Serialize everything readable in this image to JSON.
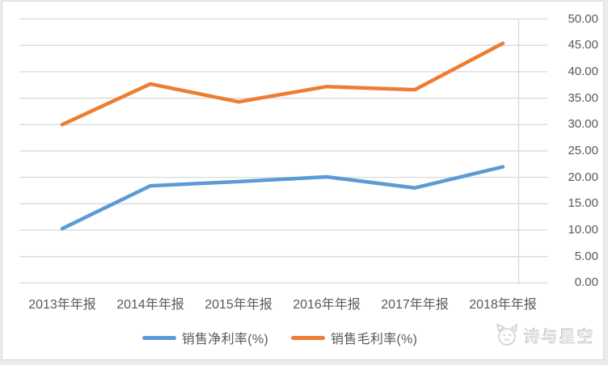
{
  "chart_data": {
    "type": "line",
    "title": "",
    "xlabel": "",
    "ylabel": "",
    "categories": [
      "2013年年报",
      "2014年年报",
      "2015年年报",
      "2016年年报",
      "2017年年报",
      "2018年年报"
    ],
    "series": [
      {
        "name": "销售净利率(%)",
        "color": "#5B9BD5",
        "values": [
          10.3,
          18.4,
          19.2,
          20.1,
          18.0,
          22.0
        ]
      },
      {
        "name": "销售毛利率(%)",
        "color": "#ED7D31",
        "values": [
          30.0,
          37.7,
          34.3,
          37.2,
          36.6,
          45.4
        ]
      }
    ],
    "y_axis": {
      "min": 0,
      "max": 50,
      "step": 5,
      "side": "right",
      "tick_labels": [
        "0.00",
        "5.00",
        "10.00",
        "15.00",
        "20.00",
        "25.00",
        "30.00",
        "35.00",
        "40.00",
        "45.00",
        "50.00"
      ]
    },
    "grid": true,
    "legend_position": "bottom"
  },
  "watermark": {
    "text": "诗与星空",
    "icon": "cat-logo-icon"
  },
  "colors": {
    "grid": "#D9D9D9",
    "axis": "#D9D9D9",
    "label": "#595959",
    "frame": "#D9D9D9"
  }
}
